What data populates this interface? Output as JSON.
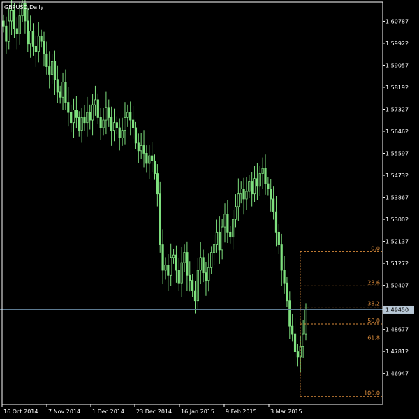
{
  "chart_data": {
    "type": "candlestick",
    "title": "GBPUSD,Daily",
    "y_ticks": [
      "1.60787",
      "1.59922",
      "1.59057",
      "1.58192",
      "1.57327",
      "1.56462",
      "1.55597",
      "1.54732",
      "1.53867",
      "1.53002",
      "1.52137",
      "1.51272",
      "1.50407",
      "1.48677",
      "1.47812",
      "1.46947"
    ],
    "x_ticks": [
      "16 Oct 2014",
      "7 Nov 2014",
      "1 Dec 2014",
      "23 Dec 2014",
      "16 Jan 2015",
      "9 Feb 2015",
      "3 Mar 2015"
    ],
    "ylim": [
      1.4573,
      1.6154
    ],
    "current_price": {
      "value": 1.4945,
      "label": "1.49450"
    },
    "fibonacci": {
      "high": 1.5173,
      "low": 1.4604,
      "levels": [
        {
          "ratio": 0.0,
          "label": "0.0"
        },
        {
          "ratio": 0.236,
          "label": "23.6"
        },
        {
          "ratio": 0.382,
          "label": "38.2"
        },
        {
          "ratio": 0.5,
          "label": "50.0"
        },
        {
          "ratio": 0.618,
          "label": "61.8"
        },
        {
          "ratio": 1.0,
          "label": "100.0"
        }
      ]
    },
    "closes": [
      1.606,
      1.6,
      1.608,
      1.612,
      1.605,
      1.603,
      1.61,
      1.615,
      1.608,
      1.599,
      1.604,
      1.598,
      1.596,
      1.602,
      1.6,
      1.595,
      1.59,
      1.587,
      1.592,
      1.585,
      1.58,
      1.578,
      1.584,
      1.576,
      1.572,
      1.568,
      1.573,
      1.57,
      1.565,
      1.57,
      1.568,
      1.572,
      1.569,
      1.575,
      1.577,
      1.57,
      1.566,
      1.569,
      1.574,
      1.57,
      1.565,
      1.568,
      1.566,
      1.562,
      1.565,
      1.57,
      1.572,
      1.569,
      1.566,
      1.56,
      1.557,
      1.559,
      1.556,
      1.552,
      1.555,
      1.553,
      1.548,
      1.54,
      1.52,
      1.51,
      1.512,
      1.508,
      1.515,
      1.516,
      1.51,
      1.505,
      1.513,
      1.517,
      1.508,
      1.506,
      1.502,
      1.498,
      1.51,
      1.515,
      1.509,
      1.506,
      1.511,
      1.517,
      1.52,
      1.525,
      1.518,
      1.527,
      1.532,
      1.525,
      1.523,
      1.53,
      1.535,
      1.54,
      1.542,
      1.538,
      1.541,
      1.545,
      1.54,
      1.546,
      1.543,
      1.548,
      1.55,
      1.544,
      1.542,
      1.538,
      1.533,
      1.525,
      1.52,
      1.51,
      1.505,
      1.498,
      1.488,
      1.485,
      1.478,
      1.476,
      1.48,
      1.485,
      1.4945
    ]
  }
}
